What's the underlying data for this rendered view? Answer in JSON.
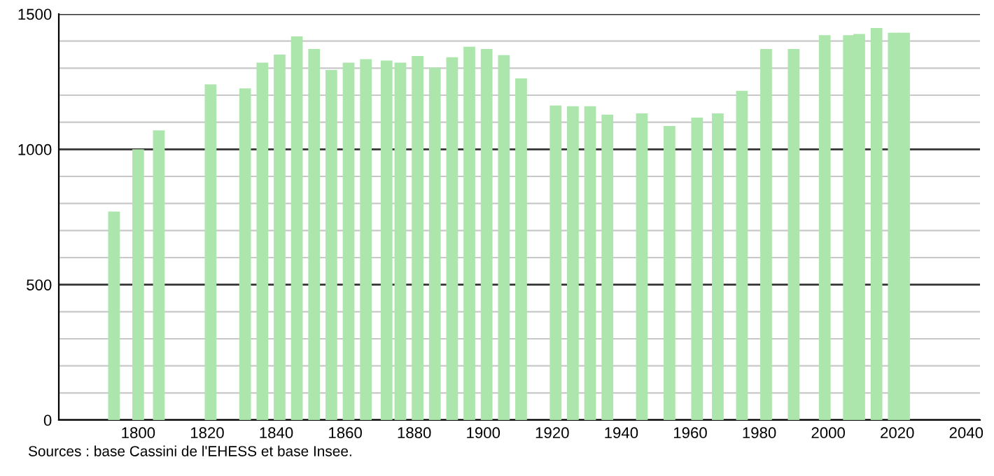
{
  "chart_data": {
    "type": "bar",
    "x": [
      1793,
      1800,
      1806,
      1821,
      1831,
      1836,
      1841,
      1846,
      1851,
      1856,
      1861,
      1866,
      1872,
      1876,
      1881,
      1886,
      1891,
      1896,
      1901,
      1906,
      1911,
      1921,
      1926,
      1931,
      1936,
      1946,
      1954,
      1962,
      1968,
      1975,
      1982,
      1990,
      1999,
      2006,
      2009,
      2014,
      2019,
      2022
    ],
    "values": [
      770,
      1000,
      1070,
      1240,
      1225,
      1320,
      1350,
      1417,
      1371,
      1293,
      1320,
      1333,
      1328,
      1320,
      1345,
      1302,
      1340,
      1379,
      1371,
      1348,
      1262,
      1162,
      1159,
      1159,
      1128,
      1133,
      1086,
      1117,
      1133,
      1216,
      1371,
      1371,
      1422,
      1422,
      1426,
      1448,
      1431,
      1431
    ],
    "color": "#ade6ad",
    "xlim": [
      1777,
      2044
    ],
    "xticks": [
      1800,
      1820,
      1840,
      1860,
      1880,
      1900,
      1920,
      1940,
      1960,
      1980,
      2000,
      2020,
      2040
    ],
    "ylim": [
      0,
      1500
    ],
    "yticks": [
      0,
      {
        "value": 100,
        "label": null
      },
      {
        "value": 200,
        "label": null
      },
      {
        "value": 300,
        "label": null
      },
      {
        "value": 400,
        "label": null
      },
      500,
      {
        "value": 600,
        "label": null
      },
      {
        "value": 700,
        "label": null
      },
      {
        "value": 800,
        "label": null
      },
      {
        "value": 900,
        "label": null
      },
      1000,
      {
        "value": 1100,
        "label": null
      },
      {
        "value": 1200,
        "label": null
      },
      {
        "value": 1300,
        "label": null
      },
      {
        "value": 1400,
        "label": null
      },
      1500
    ],
    "grid": "y",
    "annotations": [
      "Sources : base Cassini de l'EHESS et base Insee."
    ]
  }
}
